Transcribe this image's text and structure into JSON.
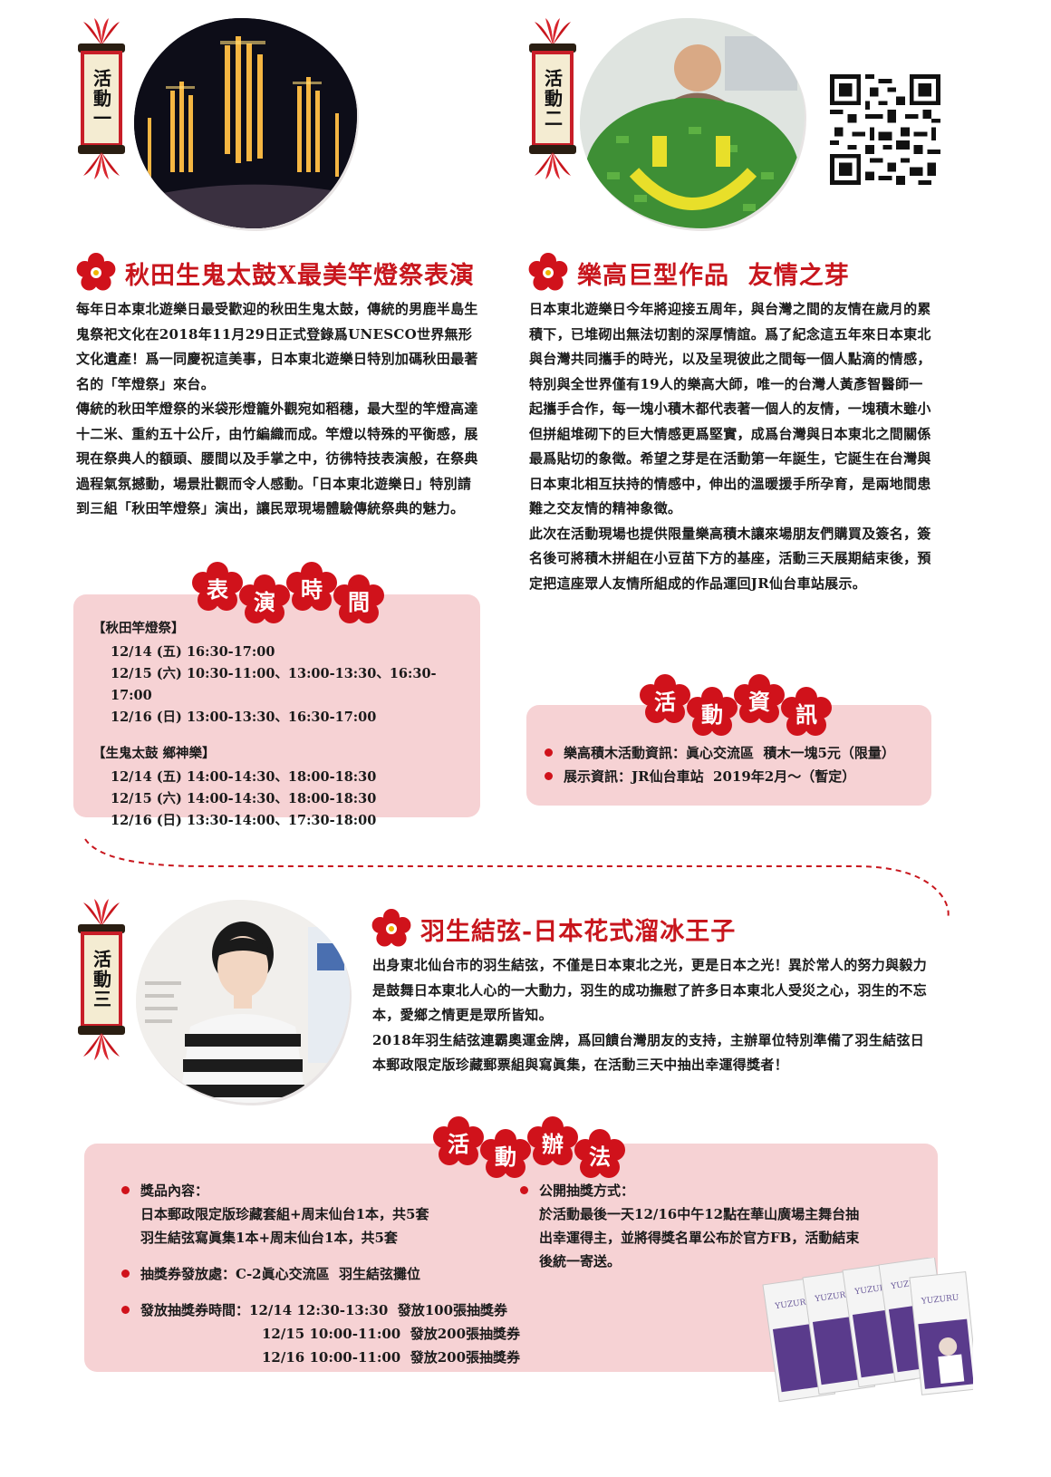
{
  "tags": {
    "act1": "活動一",
    "act2": "活動二",
    "act3": "活動三"
  },
  "section1": {
    "title": "秋田生鬼太鼓X最美竿燈祭表演",
    "paragraphs": [
      "每年日本東北遊樂日最受歡迎的秋田生鬼太鼓，傳統的男鹿半島生鬼祭祀文化在2018年11月29日正式登錄爲UNESCO世界無形文化遺產！爲一同慶祝這美事，日本東北遊樂日特別加碼秋田最著名的「竿燈祭」來台。",
      "傳統的秋田竿燈祭的米袋形燈籠外觀宛如稻穗，最大型的竿燈高達十二米、重約五十公斤，由竹編織而成。竿燈以特殊的平衡感，展現在祭典人的額頭、腰間以及手掌之中，彷彿特技表演般，在祭典過程氣氛撼動，場景壯觀而令人感動。「日本東北遊樂日」特別請到三組「秋田竿燈祭」演出，讓民眾現場體驗傳統祭典的魅力。"
    ],
    "badge": [
      "表",
      "演",
      "時",
      "間"
    ],
    "schedule": {
      "group1_title": "【秋田竿燈祭】",
      "group1_rows": [
        "12/14 (五) 16:30-17:00",
        "12/15 (六) 10:30-11:00、13:00-13:30、16:30-17:00",
        "12/16 (日) 13:00-13:30、16:30-17:00"
      ],
      "group2_title": "【生鬼太鼓  鄉神樂】",
      "group2_rows": [
        "12/14 (五) 14:00-14:30、18:00-18:30",
        "12/15 (六) 14:00-14:30、18:00-18:30",
        "12/16 (日) 13:30-14:00、17:30-18:00"
      ]
    }
  },
  "section2": {
    "title": "樂高巨型作品  友情之芽",
    "paragraphs": [
      "日本東北遊樂日今年將迎接五周年，與台灣之間的友情在歲月的累積下，已堆砌出無法切割的深厚情誼。爲了紀念這五年來日本東北與台灣共同攜手的時光，以及呈現彼此之間每一個人點滴的情感，特別與全世界僅有19人的樂高大師，唯一的台灣人黃彥智醫師一起攜手合作，每一塊小積木都代表著一個人的友情，一塊積木雖小但拼組堆砌下的巨大情感更爲堅實，成爲台灣與日本東北之間關係最爲貼切的象徵。希望之芽是在活動第一年誕生，它誕生在台灣與日本東北相互扶持的情感中，伸出的溫暖援手所孕育，是兩地間患難之交友情的精神象徵。",
      "此次在活動現場也提供限量樂高積木讓來場朋友們購買及簽名，簽名後可將積木拼組在小豆苗下方的基座，活動三天展期結束後，預定把這座眾人友情所組成的作品運回JR仙台車站展示。"
    ],
    "badge": [
      "活",
      "動",
      "資",
      "訊"
    ],
    "info": [
      "樂高積木活動資訊：眞心交流區  積木一塊5元（限量）",
      "展示資訊：JR仙台車站  2019年2月～（暫定）"
    ]
  },
  "section3": {
    "title": "羽生結弦-日本花式溜冰王子",
    "paragraphs": [
      "出身東北仙台市的羽生結弦，不僅是日本東北之光，更是日本之光！異於常人的努力與毅力是鼓舞日本東北人心的一大動力，羽生的成功撫慰了許多日本東北人受災之心，羽生的不忘本，愛鄉之情更是眾所皆知。",
      "2018年羽生結弦連霸奧運金牌，爲回饋台灣朋友的支持，主辦單位特別準備了羽生結弦日本郵政限定版珍藏郵票組與寫眞集，在活動三天中抽出幸運得獎者！"
    ],
    "badge": [
      "活",
      "動",
      "辦",
      "法"
    ],
    "left": {
      "prize_label": "獎品內容：",
      "prize_lines": [
        "日本郵政限定版珍藏套組+周末仙台1本，共5套",
        "羽生結弦寫眞集1本+周末仙台1本，共5套"
      ],
      "ticket_place": "抽獎券發放處：C-2眞心交流區  羽生結弦攤位",
      "ticket_time_label": "發放抽獎券時間：",
      "ticket_times": [
        "12/14 12:30-13:30  發放100張抽獎券",
        "12/15 10:00-11:00  發放200張抽獎券",
        "12/16 10:00-11:00  發放200張抽獎券"
      ]
    },
    "right": {
      "draw_label": "公開抽獎方式：",
      "draw_lines": [
        "於活動最後一天12/16中午12點在華山廣場主舞台抽",
        "出幸運得主，並將得獎名單公布於官方FB，活動結束",
        "後統一寄送。"
      ]
    },
    "product_label": "YUZURU"
  },
  "colors": {
    "accent": "#c8161d",
    "pink_box": "#f6d2d4",
    "scroll_paper": "#f4ecd2"
  }
}
